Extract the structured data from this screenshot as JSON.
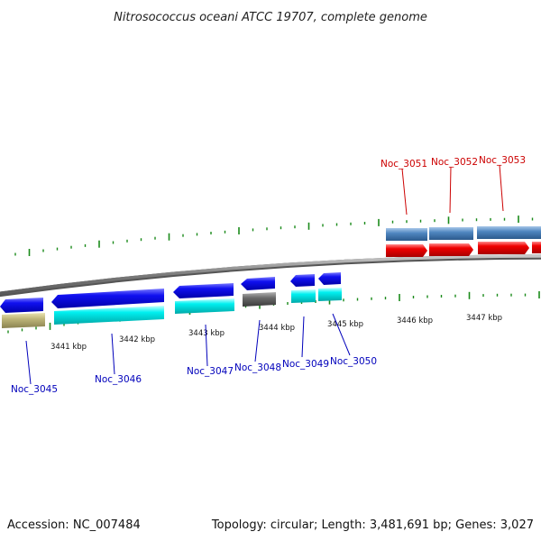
{
  "title": "Nitrosococcus oceani ATCC 19707, complete genome",
  "footer": {
    "accession": "Accession: NC_007484",
    "topology": "Topology: circular; Length: 3,481,691 bp; Genes: 3,027"
  },
  "colors": {
    "backbone": "#888888",
    "tick": "#1a8a1a",
    "label_forward": "#cc0000",
    "label_reverse": "#0000bb",
    "cds_blue": "#0000ee",
    "cds_cyan": "#00eeee",
    "cds_steel": "#4f86c0",
    "cds_red": "#ee0000",
    "cds_gray": "#666666",
    "cds_olive": "#b8b070"
  },
  "kbp_labels": [
    "3441 kbp",
    "3442 kbp",
    "3443 kbp",
    "3444 kbp",
    "3445 kbp",
    "3446 kbp",
    "3447 kbp"
  ],
  "gene_labels": [
    {
      "name": "Noc_3045",
      "strand": "reverse"
    },
    {
      "name": "Noc_3046",
      "strand": "reverse"
    },
    {
      "name": "Noc_3047",
      "strand": "reverse"
    },
    {
      "name": "Noc_3048",
      "strand": "reverse"
    },
    {
      "name": "Noc_3049",
      "strand": "reverse"
    },
    {
      "name": "Noc_3050",
      "strand": "reverse"
    },
    {
      "name": "Noc_3051",
      "strand": "forward"
    },
    {
      "name": "Noc_3052",
      "strand": "forward"
    },
    {
      "name": "Noc_3053",
      "strand": "forward"
    }
  ]
}
